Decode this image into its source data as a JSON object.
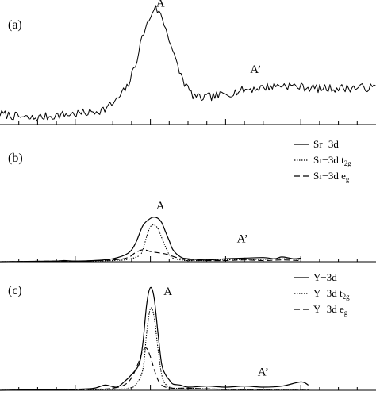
{
  "chart_data": [
    {
      "type": "line",
      "panel_label": "(a)",
      "title": "",
      "xlabel": "",
      "ylabel": "",
      "x_ticks": 20,
      "x_range": [
        0,
        100
      ],
      "y_range": [
        0,
        1
      ],
      "annotations": [
        {
          "text": "A",
          "x": 41.5,
          "y": 0.985
        },
        {
          "text": "A’",
          "x": 66.5,
          "y": 0.43
        }
      ],
      "series": [
        {
          "style": "solid",
          "noise": 0.035,
          "seed": 7,
          "x": [
            0,
            8,
            16,
            24,
            28,
            31,
            34,
            36,
            38,
            40,
            41,
            42,
            43,
            45,
            47,
            49,
            51,
            53,
            58,
            65,
            75,
            85,
            100
          ],
          "y": [
            0.09,
            0.05,
            0.08,
            0.1,
            0.13,
            0.2,
            0.32,
            0.5,
            0.75,
            0.9,
            0.98,
            0.95,
            0.9,
            0.72,
            0.5,
            0.35,
            0.25,
            0.22,
            0.24,
            0.29,
            0.33,
            0.3,
            0.31
          ]
        }
      ]
    },
    {
      "type": "line",
      "panel_label": "(b)",
      "title": "",
      "xlabel": "",
      "ylabel": "",
      "x_ticks": 20,
      "x_range": [
        0,
        100
      ],
      "y_range": [
        0,
        1
      ],
      "legend_position": "top-right",
      "legend": [
        {
          "style": "solid",
          "text": "Sr−3d",
          "sub": ""
        },
        {
          "style": "dotted",
          "text": "Sr−3d t",
          "sub": "2g"
        },
        {
          "style": "dashed",
          "text": "Sr−3d e",
          "sub": "g"
        }
      ],
      "annotations": [
        {
          "text": "A",
          "x": 41.5,
          "y": 0.87
        },
        {
          "text": "A’",
          "x": 63,
          "y": 0.32
        }
      ],
      "series": [
        {
          "style": "solid",
          "x": [
            0,
            14,
            17,
            20,
            25,
            30,
            34,
            36,
            38,
            40,
            41,
            42,
            43,
            44,
            45,
            46,
            48,
            50,
            55,
            60,
            65,
            70,
            73,
            75,
            78,
            80
          ],
          "y": [
            0,
            0.01,
            0.02,
            0.01,
            0.02,
            0.05,
            0.14,
            0.3,
            0.6,
            0.72,
            0.74,
            0.72,
            0.65,
            0.5,
            0.35,
            0.2,
            0.08,
            0.05,
            0.03,
            0.05,
            0.06,
            0.07,
            0.05,
            0.08,
            0.05,
            0.06
          ]
        },
        {
          "style": "dotted",
          "x": [
            0,
            20,
            30,
            34,
            37,
            38,
            39,
            40,
            41,
            42,
            43,
            44,
            45,
            46,
            48,
            50,
            55,
            60,
            65,
            70,
            75,
            80
          ],
          "y": [
            0,
            0.01,
            0.02,
            0.04,
            0.1,
            0.2,
            0.42,
            0.58,
            0.61,
            0.55,
            0.4,
            0.25,
            0.12,
            0.06,
            0.03,
            0.02,
            0.02,
            0.03,
            0.04,
            0.04,
            0.05,
            0.04
          ]
        },
        {
          "style": "dashed",
          "x": [
            0,
            14,
            20,
            30,
            34,
            36,
            38,
            40,
            42,
            44,
            46,
            48,
            50,
            55,
            60,
            65,
            70,
            75,
            80
          ],
          "y": [
            0,
            0.01,
            0.01,
            0.03,
            0.07,
            0.15,
            0.2,
            0.17,
            0.15,
            0.13,
            0.09,
            0.05,
            0.03,
            0.02,
            0.02,
            0.03,
            0.02,
            0.03,
            0.02
          ]
        }
      ]
    },
    {
      "type": "line",
      "panel_label": "(c)",
      "title": "",
      "xlabel": "",
      "ylabel": "",
      "x_ticks": 20,
      "x_range": [
        0,
        100
      ],
      "y_range": [
        0,
        1
      ],
      "legend_position": "top-right",
      "legend": [
        {
          "style": "solid",
          "text": "Y−3d",
          "sub": ""
        },
        {
          "style": "dotted",
          "text": "Y−3d t",
          "sub": "2g"
        },
        {
          "style": "dashed",
          "text": "Y−3d e",
          "sub": "g"
        }
      ],
      "annotations": [
        {
          "text": "A",
          "x": 43.5,
          "y": 0.91
        },
        {
          "text": "A’",
          "x": 68.5,
          "y": 0.14
        }
      ],
      "series": [
        {
          "style": "solid",
          "x": [
            0,
            20,
            25,
            28,
            31,
            33,
            35,
            37,
            38,
            39,
            40,
            41,
            42,
            43,
            44,
            45,
            46,
            48,
            50,
            55,
            60,
            65,
            70,
            75,
            80,
            82
          ],
          "y": [
            0,
            0.01,
            0.02,
            0.05,
            0.03,
            0.08,
            0.15,
            0.25,
            0.45,
            0.82,
            0.98,
            0.88,
            0.55,
            0.25,
            0.15,
            0.1,
            0.06,
            0.05,
            0.03,
            0.04,
            0.03,
            0.04,
            0.03,
            0.04,
            0.08,
            0.05
          ]
        },
        {
          "style": "dotted",
          "x": [
            0,
            30,
            34,
            36,
            38,
            39,
            40,
            41,
            42,
            43,
            44,
            46,
            50,
            60,
            80,
            82
          ],
          "y": [
            0,
            0.01,
            0.02,
            0.05,
            0.2,
            0.55,
            0.78,
            0.7,
            0.4,
            0.15,
            0.06,
            0.02,
            0.02,
            0.01,
            0.01,
            0.01
          ]
        },
        {
          "style": "dashed",
          "x": [
            0,
            25,
            30,
            33,
            35,
            37,
            38,
            39,
            40,
            41,
            42,
            43,
            44,
            46,
            50,
            60,
            80,
            82
          ],
          "y": [
            0,
            0.01,
            0.02,
            0.05,
            0.12,
            0.28,
            0.38,
            0.4,
            0.32,
            0.2,
            0.1,
            0.05,
            0.03,
            0.02,
            0.02,
            0.01,
            0.01,
            0.01
          ]
        }
      ]
    }
  ]
}
